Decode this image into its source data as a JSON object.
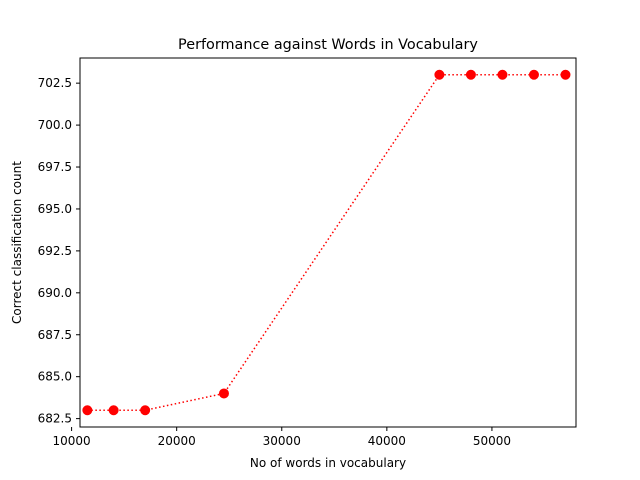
{
  "chart_data": {
    "type": "line",
    "title": "Performance against Words in Vocabulary",
    "xlabel": "No of words in vocabulary",
    "ylabel": "Correct classification count",
    "xlim": [
      10800,
      58000
    ],
    "ylim": [
      682.0,
      704.0
    ],
    "x_ticks": [
      10000,
      20000,
      30000,
      40000,
      50000
    ],
    "x_tick_labels": [
      "10000",
      "20000",
      "30000",
      "40000",
      "50000"
    ],
    "y_ticks": [
      682.5,
      685.0,
      687.5,
      690.0,
      692.5,
      695.0,
      697.5,
      700.0,
      702.5
    ],
    "y_tick_labels": [
      "682.5",
      "685.0",
      "687.5",
      "690.0",
      "692.5",
      "695.0",
      "697.5",
      "700.0",
      "702.5"
    ],
    "grid": false,
    "series": [
      {
        "color": "#ff0000",
        "line_style": "dotted",
        "marker": "circle",
        "x": [
          11500,
          14000,
          17000,
          24500,
          45000,
          48000,
          51000,
          54000,
          57000
        ],
        "y": [
          683,
          683,
          683,
          684,
          703,
          703,
          703,
          703,
          703
        ]
      }
    ]
  }
}
